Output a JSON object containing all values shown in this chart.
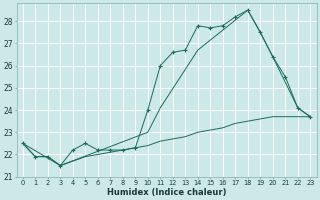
{
  "xlabel": "Humidex (Indice chaleur)",
  "bg_color": "#cce8e8",
  "grid_color": "#ffffff",
  "line_color": "#1a6b5a",
  "xlim": [
    -0.5,
    23.5
  ],
  "ylim": [
    21.0,
    28.8
  ],
  "yticks": [
    21,
    22,
    23,
    24,
    25,
    26,
    27,
    28
  ],
  "xticks": [
    0,
    1,
    2,
    3,
    4,
    5,
    6,
    7,
    8,
    9,
    10,
    11,
    12,
    13,
    14,
    15,
    16,
    17,
    18,
    19,
    20,
    21,
    22,
    23
  ],
  "s1_x": [
    0,
    1,
    2,
    3,
    4,
    5,
    6,
    7,
    8,
    9,
    10,
    11,
    12,
    13,
    14,
    15,
    16,
    17,
    18,
    19,
    20,
    21,
    22,
    23
  ],
  "s1_y": [
    22.5,
    21.9,
    21.9,
    21.5,
    22.2,
    22.5,
    22.2,
    22.2,
    22.2,
    22.3,
    24.0,
    26.0,
    26.6,
    26.7,
    27.8,
    27.7,
    27.8,
    28.2,
    28.5,
    27.5,
    26.4,
    25.5,
    24.1,
    23.7
  ],
  "s2_x": [
    0,
    3,
    10,
    11,
    14,
    18,
    19,
    20,
    22,
    23
  ],
  "s2_y": [
    22.5,
    21.5,
    23.0,
    24.1,
    26.7,
    28.5,
    27.5,
    26.4,
    24.1,
    23.7
  ],
  "s3_x": [
    0,
    1,
    2,
    3,
    4,
    5,
    6,
    7,
    8,
    9,
    10,
    11,
    12,
    13,
    14,
    15,
    16,
    17,
    18,
    19,
    20,
    21,
    22,
    23
  ],
  "s3_y": [
    22.5,
    21.9,
    21.9,
    21.5,
    21.7,
    21.9,
    22.0,
    22.1,
    22.2,
    22.3,
    22.4,
    22.6,
    22.7,
    22.8,
    23.0,
    23.1,
    23.2,
    23.4,
    23.5,
    23.6,
    23.7,
    23.7,
    23.7,
    23.7
  ]
}
